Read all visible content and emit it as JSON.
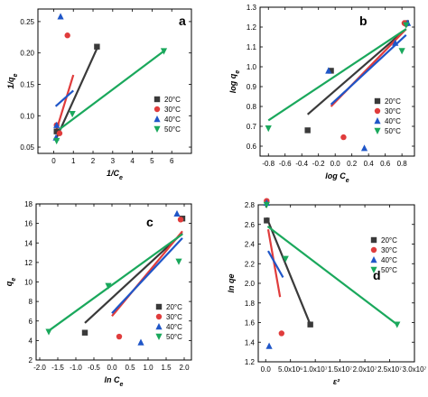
{
  "colors": {
    "20": "#3a3a3a",
    "30": "#e03c3c",
    "40": "#1f56c8",
    "50": "#1aa85c"
  },
  "chart_data": [
    {
      "type": "scatter",
      "panel_label": "a",
      "xlabel": "1/C_e",
      "ylabel": "1/q_e",
      "xlim": [
        -0.8,
        7
      ],
      "ylim": [
        0.04,
        0.27
      ],
      "xticks": [
        0,
        1,
        2,
        3,
        4,
        5,
        6
      ],
      "yticks": [
        0.05,
        0.1,
        0.15,
        0.2,
        0.25
      ],
      "xtick_labels": [
        "0",
        "1",
        "2",
        "3",
        "4",
        "5",
        "6"
      ],
      "ytick_labels": [
        "0.05",
        "0.10",
        "0.15",
        "0.20",
        "0.25"
      ],
      "legend": [
        "20°C",
        "30°C",
        "40°C",
        "50°C"
      ],
      "series": [
        {
          "name": "20°C",
          "marker": "square",
          "points": [
            [
              0.15,
              0.075
            ],
            [
              2.2,
              0.21
            ]
          ],
          "fit": [
            [
              0.15,
              0.065
            ],
            [
              2.2,
              0.207
            ]
          ]
        },
        {
          "name": "30°C",
          "marker": "circle",
          "points": [
            [
              0.15,
              0.085
            ],
            [
              0.7,
              0.228
            ],
            [
              0.3,
              0.072
            ]
          ],
          "fit": [
            [
              0.15,
              0.078
            ],
            [
              1.0,
              0.165
            ]
          ]
        },
        {
          "name": "40°C",
          "marker": "triangle-up",
          "points": [
            [
              0.35,
              0.258
            ],
            [
              0.15,
              0.085
            ],
            [
              0.12,
              0.065
            ]
          ],
          "fit": [
            [
              0.1,
              0.115
            ],
            [
              1.0,
              0.14
            ]
          ]
        },
        {
          "name": "50°C",
          "marker": "triangle-down",
          "points": [
            [
              5.6,
              0.203
            ],
            [
              0.95,
              0.103
            ],
            [
              0.15,
              0.06
            ]
          ],
          "fit": [
            [
              0.15,
              0.075
            ],
            [
              5.6,
              0.203
            ]
          ]
        }
      ]
    },
    {
      "type": "scatter",
      "panel_label": "b",
      "xlabel": "log C_e",
      "ylabel": "log q_e",
      "xlim": [
        -0.9,
        0.95
      ],
      "ylim": [
        0.55,
        1.3
      ],
      "xticks": [
        -0.8,
        -0.6,
        -0.4,
        -0.2,
        0.0,
        0.2,
        0.4,
        0.6,
        0.8
      ],
      "yticks": [
        0.6,
        0.7,
        0.8,
        0.9,
        1.0,
        1.1,
        1.2,
        1.3
      ],
      "xtick_labels": [
        "-0.8",
        "-0.6",
        "-0.4",
        "-0.2",
        "0.0",
        "0.2",
        "0.4",
        "0.6",
        "0.8"
      ],
      "ytick_labels": [
        "0.6",
        "0.7",
        "0.8",
        "0.9",
        "1.0",
        "1.1",
        "1.2",
        "1.3"
      ],
      "legend": [
        "20°C",
        "30°C",
        "40°C",
        "50°C"
      ],
      "series": [
        {
          "name": "20°C",
          "marker": "square",
          "points": [
            [
              -0.33,
              0.68
            ],
            [
              -0.05,
              0.98
            ],
            [
              0.85,
              1.22
            ]
          ],
          "fit": [
            [
              -0.33,
              0.76
            ],
            [
              0.85,
              1.19
            ]
          ]
        },
        {
          "name": "30°C",
          "marker": "circle",
          "points": [
            [
              0.1,
              0.645
            ],
            [
              0.85,
              1.215
            ],
            [
              0.83,
              1.22
            ]
          ],
          "fit": [
            [
              -0.05,
              0.8
            ],
            [
              0.85,
              1.19
            ]
          ]
        },
        {
          "name": "40°C",
          "marker": "triangle-up",
          "points": [
            [
              0.35,
              0.59
            ],
            [
              -0.08,
              0.98
            ],
            [
              0.72,
              1.12
            ],
            [
              0.87,
              1.22
            ]
          ],
          "fit": [
            [
              -0.05,
              0.81
            ],
            [
              0.85,
              1.16
            ]
          ]
        },
        {
          "name": "50°C",
          "marker": "triangle-down",
          "points": [
            [
              -0.8,
              0.69
            ],
            [
              0.8,
              1.08
            ],
            [
              0.85,
              1.21
            ]
          ],
          "fit": [
            [
              -0.8,
              0.73
            ],
            [
              0.85,
              1.19
            ]
          ]
        }
      ]
    },
    {
      "type": "scatter",
      "panel_label": "c",
      "xlabel": "ln C_e",
      "ylabel": "q_e",
      "xlim": [
        -2.1,
        2.2
      ],
      "ylim": [
        2,
        18
      ],
      "xticks": [
        -2.0,
        -1.5,
        -1.0,
        -0.5,
        0.0,
        0.5,
        1.0,
        1.5,
        2.0
      ],
      "yticks": [
        2,
        4,
        6,
        8,
        10,
        12,
        14,
        16,
        18
      ],
      "xtick_labels": [
        "-2.0",
        "-1.5",
        "-1.0",
        "-0.5",
        "0.0",
        "0.5",
        "1.0",
        "1.5",
        "2.0"
      ],
      "ytick_labels": [
        "2",
        "4",
        "6",
        "8",
        "10",
        "12",
        "14",
        "16",
        "18"
      ],
      "legend": [
        "20°C",
        "30°C",
        "40°C",
        "50°C"
      ],
      "series": [
        {
          "name": "20°C",
          "marker": "square",
          "points": [
            [
              -0.75,
              4.8
            ],
            [
              1.95,
              16.5
            ]
          ],
          "fit": [
            [
              -0.75,
              5.8
            ],
            [
              1.95,
              15.0
            ]
          ]
        },
        {
          "name": "30°C",
          "marker": "circle",
          "points": [
            [
              0.2,
              4.4
            ],
            [
              1.9,
              16.4
            ]
          ],
          "fit": [
            [
              0.0,
              6.5
            ],
            [
              1.95,
              15.2
            ]
          ]
        },
        {
          "name": "40°C",
          "marker": "triangle-up",
          "points": [
            [
              0.8,
              3.8
            ],
            [
              1.8,
              17.0
            ]
          ],
          "fit": [
            [
              0.0,
              6.8
            ],
            [
              1.95,
              14.5
            ]
          ]
        },
        {
          "name": "50°C",
          "marker": "triangle-down",
          "points": [
            [
              -1.75,
              4.9
            ],
            [
              -0.1,
              9.6
            ],
            [
              1.85,
              12.1
            ]
          ],
          "fit": [
            [
              -1.75,
              5.0
            ],
            [
              1.95,
              14.9
            ]
          ]
        }
      ]
    },
    {
      "type": "scatter",
      "panel_label": "d",
      "xlabel": "ε²",
      "ylabel": "ln qe",
      "xlim": [
        -1500000,
        30000000
      ],
      "ylim": [
        1.2,
        2.8
      ],
      "xticks": [
        0,
        5000000,
        10000000,
        15000000,
        20000000,
        25000000,
        30000000
      ],
      "yticks": [
        1.2,
        1.4,
        1.6,
        1.8,
        2.0,
        2.2,
        2.4,
        2.6,
        2.8
      ],
      "xtick_labels": [
        "0.0",
        "5.0x10⁶",
        "1.0x10⁷",
        "1.5x10⁷",
        "2.0x10⁷",
        "2.5x10⁷",
        "3.0x10⁷"
      ],
      "ytick_labels": [
        "1.2",
        "1.4",
        "1.6",
        "1.8",
        "2.0",
        "2.2",
        "2.4",
        "2.6",
        "2.8"
      ],
      "legend": [
        "20°C",
        "30°C",
        "40°C",
        "50°C"
      ],
      "series": [
        {
          "name": "20°C",
          "marker": "square",
          "points": [
            [
              9000000,
              1.58
            ],
            [
              200000,
              2.64
            ]
          ],
          "fit": [
            [
              200000,
              2.67
            ],
            [
              9000000,
              1.58
            ]
          ]
        },
        {
          "name": "30°C",
          "marker": "circle",
          "points": [
            [
              3200000,
              1.49
            ],
            [
              200000,
              2.84
            ]
          ],
          "fit": [
            [
              500000,
              2.55
            ],
            [
              2900000,
              1.86
            ]
          ]
        },
        {
          "name": "40°C",
          "marker": "triangle-up",
          "points": [
            [
              700000,
              1.36
            ],
            [
              200000,
              2.82
            ]
          ],
          "fit": [
            [
              500000,
              2.33
            ],
            [
              3500000,
              2.06
            ]
          ]
        },
        {
          "name": "50°C",
          "marker": "triangle-down",
          "points": [
            [
              26500000,
              1.58
            ],
            [
              4000000,
              2.25
            ],
            [
              200000,
              2.8
            ]
          ],
          "fit": [
            [
              400000,
              2.58
            ],
            [
              26500000,
              1.58
            ]
          ]
        }
      ]
    }
  ]
}
